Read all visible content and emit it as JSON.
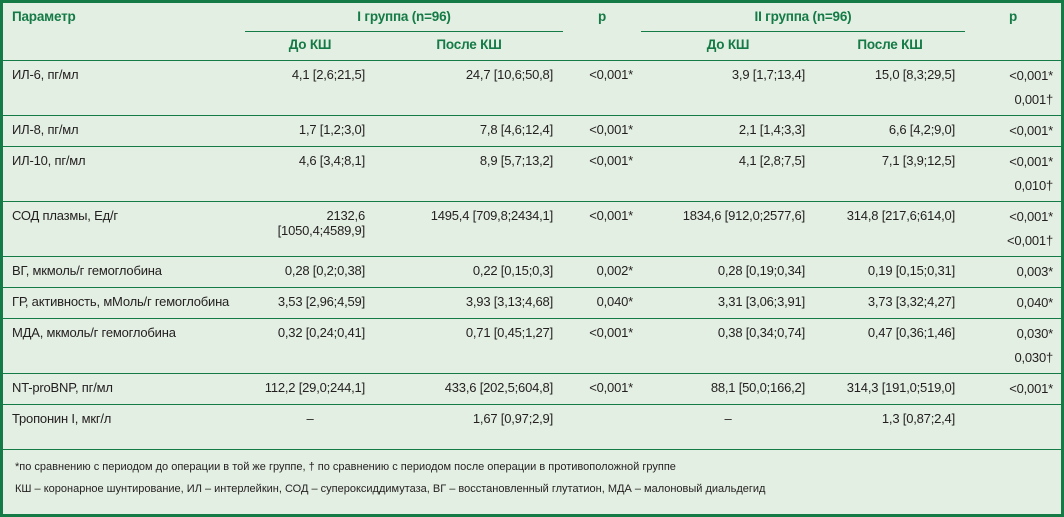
{
  "header": {
    "param": "Параметр",
    "group1": "I группа (n=96)",
    "p1": "p",
    "group2": "II группа (n=96)",
    "p2": "p",
    "before": "До КШ",
    "after": "После КШ",
    "before2": "До КШ",
    "after2": "После КШ"
  },
  "rows": [
    {
      "param": "ИЛ-6, пг/мл",
      "g1_before": "4,1 [2,6;21,5]",
      "g1_after": "24,7 [10,6;50,8]",
      "p1": "<0,001*",
      "g2_before": "3,9 [1,7;13,4]",
      "g2_after": "15,0 [8,3;29,5]",
      "p2": [
        "<0,001*",
        "0,001†"
      ]
    },
    {
      "param": "ИЛ-8, пг/мл",
      "g1_before": "1,7 [1,2;3,0]",
      "g1_after": "7,8 [4,6;12,4]",
      "p1": "<0,001*",
      "g2_before": "2,1 [1,4;3,3]",
      "g2_after": "6,6 [4,2;9,0]",
      "p2": [
        "<0,001*"
      ]
    },
    {
      "param": "ИЛ-10, пг/мл",
      "g1_before": "4,6 [3,4;8,1]",
      "g1_after": "8,9 [5,7;13,2]",
      "p1": "<0,001*",
      "g2_before": "4,1 [2,8;7,5]",
      "g2_after": "7,1 [3,9;12,5]",
      "p2": [
        "<0,001*",
        "0,010†"
      ]
    },
    {
      "param": "СОД плазмы, Ед/г",
      "g1_before": "2132,6 [1050,4;4589,9]",
      "g1_after": "1495,4 [709,8;2434,1]",
      "p1": "<0,001*",
      "g2_before": "1834,6 [912,0;2577,6]",
      "g2_after": "314,8 [217,6;614,0]",
      "p2": [
        "<0,001*",
        "<0,001†"
      ]
    },
    {
      "param": "ВГ, мкмоль/г гемоглобина",
      "g1_before": "0,28 [0,2;0,38]",
      "g1_after": "0,22 [0,15;0,3]",
      "p1": "0,002*",
      "g2_before": "0,28 [0,19;0,34]",
      "g2_after": "0,19 [0,15;0,31]",
      "p2": [
        "0,003*"
      ]
    },
    {
      "param": "ГР, активность, мМоль/г гемоглобина",
      "g1_before": "3,53 [2,96;4,59]",
      "g1_after": "3,93 [3,13;4,68]",
      "p1": "0,040*",
      "g2_before": "3,31 [3,06;3,91]",
      "g2_after": "3,73 [3,32;4,27]",
      "p2": [
        "0,040*"
      ]
    },
    {
      "param": "МДА, мкмоль/г гемоглобина",
      "g1_before": "0,32 [0,24;0,41]",
      "g1_after": "0,71 [0,45;1,27]",
      "p1": "<0,001*",
      "g2_before": "0,38 [0,34;0,74]",
      "g2_after": "0,47 [0,36;1,46]",
      "p2": [
        "0,030*",
        "0,030†"
      ]
    },
    {
      "param": "NT-proBNP, пг/мл",
      "g1_before": "112,2 [29,0;244,1]",
      "g1_after": "433,6 [202,5;604,8]",
      "p1": "<0,001*",
      "g2_before": "88,1 [50,0;166,2]",
      "g2_after": "314,3 [191,0;519,0]",
      "p2": [
        "<0,001*"
      ]
    },
    {
      "param": "Тропонин I, мкг/л",
      "g1_before": "–",
      "g1_after": "1,67 [0,97;2,9]",
      "p1": "",
      "g2_before": "–",
      "g2_after": "1,3 [0,87;2,4]",
      "p2": [
        ""
      ]
    }
  ],
  "notes": {
    "line1": "*по сравнению с периодом до операции в той же группе, † по сравнению с периодом после операции в противоположной группе",
    "line2": "КШ – коронарное шунтирование, ИЛ – интерлейкин, СОД – супероксиддимутаза, ВГ – восстановленный глутатион, МДА – малоновый диальдегид"
  }
}
